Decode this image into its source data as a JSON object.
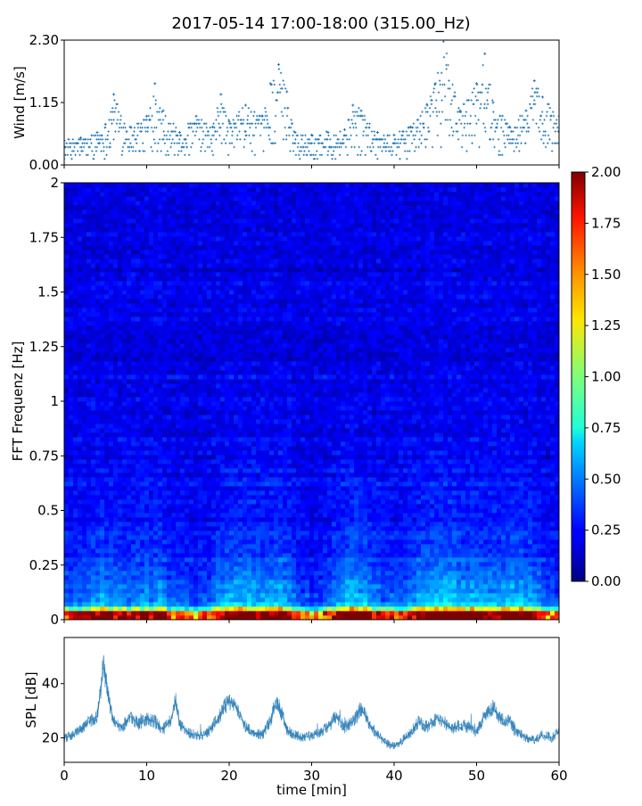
{
  "figure": {
    "title": "2017-05-14 17:00-18:00 (315.00_Hz)"
  },
  "chart_data": [
    {
      "type": "scatter",
      "ylabel": "Wind [m/s]",
      "xlabel": "",
      "xlim": [
        0,
        60
      ],
      "ylim": [
        0,
        2.3
      ],
      "yticks": [
        0.0,
        1.15,
        2.3
      ],
      "ytick_labels": [
        "0.00",
        "1.15",
        "2.30"
      ],
      "color": "#1f77b4",
      "marker": "small plus",
      "series": [
        {
          "x": [
            0,
            2,
            4,
            5,
            6,
            8,
            10,
            11,
            12,
            14,
            16,
            18,
            19,
            20,
            22,
            24,
            25,
            26,
            27,
            28,
            30,
            32,
            34,
            35,
            36,
            38,
            40,
            42,
            44,
            45,
            46,
            48,
            50,
            51,
            52,
            54,
            56,
            57,
            58,
            60
          ],
          "y": [
            0.45,
            0.5,
            0.6,
            0.75,
            1.3,
            0.7,
            0.9,
            1.5,
            1.0,
            0.6,
            0.9,
            0.7,
            1.3,
            0.8,
            1.1,
            0.9,
            1.5,
            1.85,
            1.35,
            0.6,
            0.55,
            0.6,
            0.65,
            1.1,
            1.0,
            0.6,
            0.55,
            0.7,
            1.1,
            1.5,
            2.3,
            1.0,
            1.5,
            2.05,
            1.15,
            0.7,
            1.0,
            1.55,
            1.25,
            0.9
          ]
        }
      ]
    },
    {
      "type": "heatmap",
      "ylabel": "FFT Frequenz [Hz]",
      "xlabel": "",
      "xlim": [
        0,
        60
      ],
      "ylim": [
        0,
        2
      ],
      "yticks": [
        0,
        0.25,
        0.5,
        0.75,
        1,
        1.25,
        1.5,
        1.75,
        2
      ],
      "ytick_labels": [
        "0",
        "0.25",
        "0.5",
        "0.75",
        "1",
        "1.25",
        "1.5",
        "1.75",
        "2"
      ],
      "colormap": "jet",
      "colorbar": {
        "range": [
          0,
          2
        ],
        "ticks": [
          "0.00",
          "0.25",
          "0.50",
          "0.75",
          "1.00",
          "1.25",
          "1.50",
          "1.75",
          "2.00"
        ]
      },
      "time_activity": {
        "x": [
          0,
          2,
          4,
          5,
          6,
          8,
          10,
          12,
          14,
          16,
          18,
          20,
          22,
          24,
          26,
          28,
          30,
          32,
          34,
          36,
          38,
          40,
          42,
          44,
          46,
          48,
          50,
          52,
          54,
          56,
          58,
          60
        ],
        "y": [
          0.3,
          0.35,
          0.5,
          0.55,
          0.45,
          0.4,
          0.5,
          0.45,
          0.3,
          0.3,
          0.35,
          0.6,
          0.55,
          0.5,
          0.6,
          0.35,
          0.2,
          0.35,
          0.55,
          0.6,
          0.4,
          0.3,
          0.45,
          0.6,
          0.65,
          0.55,
          0.55,
          0.45,
          0.6,
          0.55,
          0.35,
          0.3
        ]
      }
    },
    {
      "type": "line",
      "ylabel": "SPL [dB]",
      "xlabel": "time [min]",
      "xlim": [
        0,
        60
      ],
      "ylim": [
        11,
        57
      ],
      "yticks": [
        20,
        40
      ],
      "ytick_labels": [
        "20",
        "40"
      ],
      "xticks": [
        0,
        10,
        20,
        30,
        40,
        50,
        60
      ],
      "xtick_labels": [
        "0",
        "10",
        "20",
        "30",
        "40",
        "50",
        "60"
      ],
      "color": "#1f77b4",
      "series": [
        {
          "x": [
            0,
            1,
            2,
            3,
            4,
            4.8,
            5.5,
            6,
            7,
            8,
            9,
            10,
            11,
            12,
            13,
            13.5,
            14,
            15,
            16,
            17,
            18,
            19,
            20,
            21,
            22,
            23,
            24,
            25,
            25.7,
            26.5,
            27,
            28,
            29,
            30,
            31,
            32,
            33,
            34,
            35,
            36,
            37,
            38,
            39,
            40,
            41,
            42,
            43,
            44,
            45,
            46,
            47,
            48,
            49,
            50,
            51,
            52,
            53,
            54,
            55,
            56,
            57,
            58,
            59,
            60
          ],
          "y": [
            20,
            21,
            23,
            26,
            28,
            46,
            33,
            26,
            24,
            28,
            25,
            27,
            26,
            23,
            27,
            34,
            25,
            22,
            21,
            21,
            24,
            29,
            34,
            31,
            24,
            22,
            21,
            26,
            34,
            28,
            23,
            21,
            20,
            21,
            22,
            24,
            28,
            24,
            26,
            31,
            25,
            21,
            18,
            17,
            19,
            22,
            26,
            24,
            27,
            26,
            23,
            25,
            24,
            22,
            29,
            31,
            27,
            26,
            22,
            20,
            19,
            21,
            20,
            22
          ]
        }
      ]
    }
  ]
}
